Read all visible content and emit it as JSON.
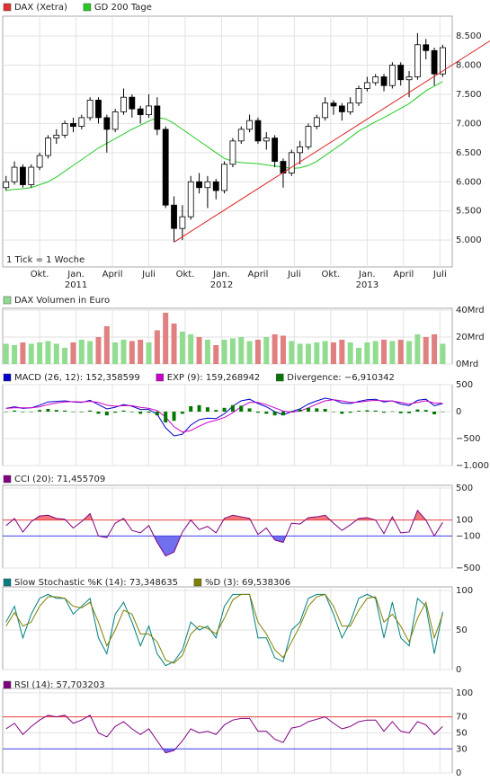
{
  "chart_data": [
    {
      "type": "candlestick",
      "x": [
        0,
        3,
        6,
        9,
        12,
        15,
        18,
        21,
        24,
        27,
        30,
        33,
        36,
        39,
        42,
        45,
        48,
        51,
        54,
        57,
        60,
        63,
        66,
        69,
        72,
        75,
        78,
        81,
        84,
        87,
        90,
        93,
        96,
        99,
        102,
        105,
        108,
        111,
        114,
        117,
        120,
        123,
        126,
        129,
        132,
        135,
        138,
        141,
        144,
        147,
        150,
        153,
        156
      ],
      "series": [
        {
          "name": "DAX (Xetra)",
          "color": "#e03030",
          "open": [
            5900,
            6000,
            6250,
            5950,
            6250,
            6450,
            6750,
            6800,
            7000,
            6950,
            7100,
            7400,
            7100,
            6900,
            7200,
            7450,
            7250,
            7150,
            7300,
            6900,
            5600,
            5200,
            5400,
            6000,
            5900,
            6000,
            5850,
            6300,
            6700,
            6900,
            7050,
            6700,
            6750,
            6350,
            6150,
            6500,
            6600,
            6950,
            7100,
            7350,
            7300,
            7200,
            7350,
            7600,
            7700,
            7800,
            7650,
            8000,
            7750,
            7800,
            8350,
            8250,
            7850
          ],
          "high": [
            6100,
            6350,
            6300,
            6300,
            6500,
            6800,
            6900,
            7050,
            7100,
            7150,
            7450,
            7450,
            7150,
            7250,
            7600,
            7500,
            7300,
            7500,
            7450,
            6950,
            5750,
            5600,
            6100,
            6150,
            6100,
            6050,
            6350,
            6750,
            6950,
            7150,
            7100,
            6850,
            6800,
            6400,
            6550,
            6700,
            7000,
            7150,
            7450,
            7400,
            7350,
            7450,
            7650,
            7800,
            7850,
            7850,
            8050,
            8050,
            7900,
            8550,
            8450,
            8300,
            8350
          ],
          "low": [
            5850,
            5950,
            5900,
            5900,
            6200,
            6400,
            6650,
            6750,
            6850,
            6900,
            7050,
            7000,
            6500,
            6850,
            7150,
            7100,
            7000,
            7100,
            6800,
            5550,
            4965,
            5000,
            5350,
            5800,
            5550,
            5700,
            5800,
            6250,
            6650,
            6850,
            6650,
            6550,
            6250,
            5900,
            6100,
            6300,
            6550,
            6900,
            7050,
            7150,
            7050,
            7150,
            7300,
            7550,
            7650,
            7550,
            7600,
            7650,
            7450,
            7750,
            8100,
            7650,
            7800
          ],
          "close": [
            6000,
            6250,
            5950,
            6250,
            6450,
            6750,
            6800,
            7000,
            6950,
            7100,
            7400,
            7100,
            6900,
            7200,
            7450,
            7250,
            7150,
            7300,
            6900,
            5600,
            5200,
            5400,
            6000,
            5900,
            6000,
            5850,
            6300,
            6700,
            6900,
            7050,
            6700,
            6750,
            6350,
            6150,
            6500,
            6600,
            6950,
            7100,
            7350,
            7300,
            7200,
            7350,
            7600,
            7700,
            7800,
            7650,
            8000,
            7750,
            7800,
            8350,
            8250,
            7850,
            8300
          ]
        },
        {
          "name": "GD 200 Tage",
          "color": "#22cc22",
          "values": [
            5850,
            5870,
            5880,
            5900,
            5950,
            6000,
            6080,
            6180,
            6280,
            6380,
            6480,
            6580,
            6660,
            6740,
            6820,
            6900,
            6970,
            7040,
            7100,
            7080,
            7000,
            6900,
            6800,
            6700,
            6600,
            6500,
            6400,
            6350,
            6330,
            6320,
            6310,
            6290,
            6270,
            6250,
            6230,
            6240,
            6280,
            6350,
            6450,
            6550,
            6650,
            6760,
            6870,
            6950,
            7030,
            7100,
            7180,
            7260,
            7340,
            7450,
            7560,
            7640,
            7720
          ]
        }
      ],
      "up_color": "#ffffff",
      "down_color": "#000000",
      "edge_color": "#000000",
      "trendline": {
        "points": [
          [
            60,
            4965
          ],
          [
            173,
            8420
          ]
        ],
        "color": "#dd2222"
      },
      "annotation": "1 Tick = 1 Woche",
      "xlim": [
        -1.2,
        159.4
      ],
      "xticks": [
        {
          "value": 12,
          "label": "Okt."
        },
        {
          "value": 25,
          "label": "Jan."
        },
        {
          "value": 38,
          "label": "April"
        },
        {
          "value": 51,
          "label": "Juli"
        },
        {
          "value": 64,
          "label": "Okt."
        },
        {
          "value": 77,
          "label": "Jan."
        },
        {
          "value": 90,
          "label": "April"
        },
        {
          "value": 103,
          "label": "Juli"
        },
        {
          "value": 116,
          "label": "Okt."
        },
        {
          "value": 129,
          "label": "Jan."
        },
        {
          "value": 142,
          "label": "April"
        },
        {
          "value": 155,
          "label": "Juli"
        }
      ],
      "years": [
        {
          "value": 25,
          "label": "2011"
        },
        {
          "value": 77,
          "label": "2012"
        },
        {
          "value": 129,
          "label": "2013"
        }
      ],
      "ylim": [
        4540,
        8840
      ],
      "yticks": [
        {
          "value": 5000,
          "label": "5.000"
        },
        {
          "value": 5500,
          "label": "5.500"
        },
        {
          "value": 6000,
          "label": "6.000"
        },
        {
          "value": 6500,
          "label": "6.500"
        },
        {
          "value": 7000,
          "label": "7.000"
        },
        {
          "value": 7500,
          "label": "7.500"
        },
        {
          "value": 8000,
          "label": "8.000"
        },
        {
          "value": 8500,
          "label": "8.500"
        }
      ],
      "grid": true
    },
    {
      "type": "bar",
      "series": [
        {
          "name": "DAX Volumen in Euro",
          "color": "#90dd90",
          "values": [
            15,
            14,
            16,
            15,
            16,
            17,
            15,
            12,
            16,
            18,
            17,
            20,
            28,
            16,
            18,
            17,
            18,
            16,
            25,
            38,
            30,
            24,
            22,
            20,
            18,
            14,
            18,
            19,
            20,
            17,
            18,
            20,
            22,
            21,
            17,
            15,
            15,
            16,
            17,
            16,
            18,
            16,
            12,
            16,
            17,
            18,
            17,
            18,
            17,
            22,
            20,
            22,
            15
          ]
        }
      ],
      "up_color": "#90dd90",
      "down_color": "#e08080",
      "ylim": [
        0,
        41.3
      ],
      "yticks": [
        {
          "value": 0,
          "label": "0Mrd"
        },
        {
          "value": 20,
          "label": "20Mrd"
        },
        {
          "value": 40,
          "label": "40Mrd"
        }
      ],
      "grid": true
    },
    {
      "type": "line",
      "series": [
        {
          "name": "MACD (26, 12): 152,358599",
          "color": "#0000cc",
          "values": [
            60,
            90,
            60,
            70,
            120,
            180,
            190,
            200,
            180,
            170,
            210,
            130,
            50,
            80,
            130,
            100,
            40,
            40,
            -50,
            -300,
            -450,
            -420,
            -250,
            -150,
            -120,
            -130,
            -40,
            100,
            200,
            230,
            150,
            90,
            0,
            -60,
            0,
            50,
            140,
            200,
            250,
            220,
            160,
            150,
            190,
            220,
            230,
            180,
            200,
            140,
            110,
            210,
            230,
            110,
            150
          ]
        },
        {
          "name": "EXP (9): 159,268942",
          "color": "#cc00cc",
          "values": [
            60,
            70,
            70,
            70,
            90,
            130,
            160,
            180,
            185,
            180,
            190,
            170,
            120,
            100,
            110,
            110,
            80,
            60,
            20,
            -100,
            -280,
            -380,
            -350,
            -270,
            -200,
            -160,
            -110,
            -20,
            90,
            170,
            170,
            130,
            70,
            10,
            -10,
            10,
            70,
            140,
            200,
            220,
            200,
            170,
            175,
            195,
            210,
            200,
            195,
            170,
            140,
            170,
            200,
            160,
            155
          ]
        },
        {
          "name": "Divergence: −6,910342",
          "color": "#007700",
          "style": "bar",
          "values": [
            0,
            20,
            -10,
            0,
            30,
            50,
            30,
            20,
            -5,
            -10,
            20,
            -40,
            -70,
            -20,
            20,
            -10,
            -40,
            -20,
            -70,
            -200,
            -170,
            -40,
            100,
            120,
            80,
            30,
            70,
            120,
            110,
            60,
            -20,
            -40,
            -70,
            -70,
            10,
            40,
            70,
            60,
            50,
            0,
            -40,
            -20,
            15,
            25,
            20,
            -20,
            5,
            -30,
            -30,
            40,
            30,
            -50,
            -5
          ]
        }
      ],
      "ylim": [
        -1000,
        500
      ],
      "yticks": [
        {
          "value": -1000,
          "label": "−1.000"
        },
        {
          "value": -500,
          "label": "−500"
        },
        0,
        500
      ],
      "grid": true
    },
    {
      "type": "line",
      "series": [
        {
          "name": "CCI (20): 71,455709",
          "color": "#800080",
          "values": [
            30,
            120,
            -50,
            80,
            150,
            160,
            120,
            110,
            0,
            80,
            180,
            -100,
            -120,
            60,
            120,
            -30,
            -60,
            30,
            -180,
            -350,
            -300,
            -50,
            100,
            -20,
            20,
            -60,
            120,
            160,
            140,
            120,
            -80,
            0,
            -150,
            -180,
            60,
            50,
            130,
            140,
            160,
            60,
            -30,
            40,
            120,
            130,
            100,
            -70,
            140,
            -60,
            -50,
            220,
            100,
            -100,
            71
          ]
        }
      ],
      "levels": [
        {
          "value": 100,
          "color": "#ee4444",
          "fill": "#f07878"
        },
        {
          "value": -100,
          "color": "#4444ee",
          "fill": "#7070ee"
        }
      ],
      "ylim": [
        -500,
        534
      ],
      "yticks": [
        {
          "value": -500,
          "label": "−500"
        },
        {
          "value": -100,
          "label": "−100"
        },
        100,
        500
      ],
      "grid": true
    },
    {
      "type": "line",
      "series": [
        {
          "name": "Slow Stochastic %K (14): 73,348635",
          "color": "#008080",
          "values": [
            60,
            80,
            40,
            70,
            90,
            95,
            90,
            90,
            70,
            80,
            90,
            40,
            20,
            70,
            85,
            60,
            30,
            55,
            20,
            5,
            10,
            25,
            60,
            50,
            55,
            40,
            80,
            95,
            95,
            95,
            40,
            40,
            15,
            10,
            50,
            60,
            90,
            95,
            95,
            70,
            40,
            60,
            90,
            95,
            90,
            40,
            85,
            40,
            30,
            90,
            80,
            20,
            73
          ]
        },
        {
          "name": "%D (3): 69,538306",
          "color": "#808000",
          "values": [
            55,
            72,
            55,
            60,
            80,
            92,
            92,
            90,
            80,
            78,
            85,
            60,
            30,
            50,
            75,
            70,
            45,
            45,
            35,
            12,
            8,
            18,
            45,
            55,
            52,
            45,
            65,
            88,
            95,
            95,
            60,
            45,
            25,
            15,
            35,
            55,
            80,
            92,
            95,
            80,
            55,
            55,
            75,
            90,
            92,
            60,
            70,
            55,
            35,
            65,
            85,
            40,
            70
          ]
        }
      ],
      "ylim": [
        0,
        104.5
      ],
      "yticks": [
        0,
        50,
        100
      ],
      "grid": true
    },
    {
      "type": "line",
      "series": [
        {
          "name": "RSI (14): 57,703203",
          "color": "#800080",
          "values": [
            55,
            62,
            48,
            58,
            66,
            72,
            70,
            72,
            62,
            66,
            72,
            50,
            45,
            58,
            64,
            55,
            48,
            55,
            40,
            25,
            28,
            40,
            55,
            50,
            52,
            48,
            60,
            66,
            68,
            68,
            52,
            52,
            42,
            38,
            56,
            58,
            64,
            67,
            70,
            62,
            55,
            58,
            64,
            66,
            66,
            52,
            64,
            52,
            50,
            64,
            60,
            48,
            58
          ]
        }
      ],
      "levels": [
        {
          "value": 70,
          "color": "#ee4444",
          "fill": "#f07878"
        },
        {
          "value": 30,
          "color": "#4444ee",
          "fill": "#7070ee"
        }
      ],
      "ylim": [
        0,
        105.5
      ],
      "yticks": [
        0,
        30,
        50,
        70,
        100
      ],
      "grid": true
    }
  ]
}
